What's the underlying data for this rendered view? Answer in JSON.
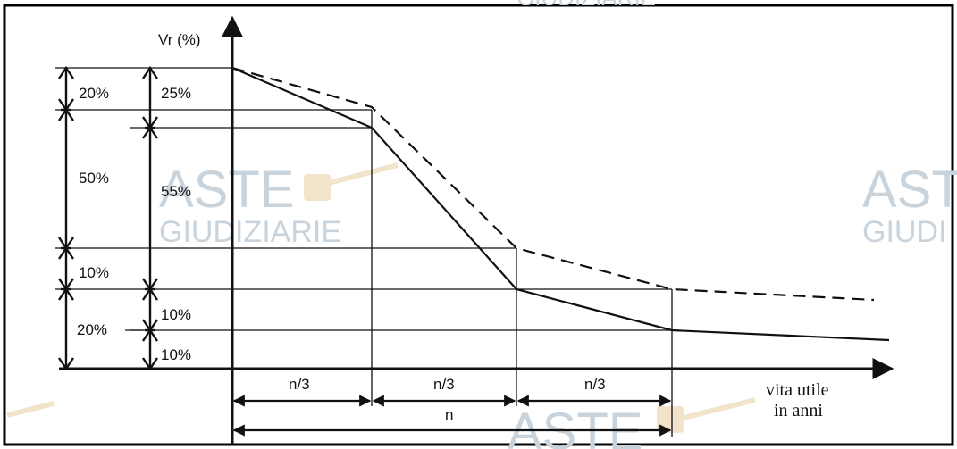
{
  "diagram": {
    "y_axis_label": "Vr (%)",
    "x_axis_label_line1": "vita utile",
    "x_axis_label_line2": "in anni",
    "left_scale": {
      "labels": [
        "20%",
        "50%",
        "10%",
        "20%"
      ]
    },
    "right_scale": {
      "labels": [
        "25%",
        "55%",
        "10%",
        "10%"
      ]
    },
    "intervals": {
      "segment_label": "n/3",
      "total_label": "n"
    },
    "series": [
      {
        "style": "solid"
      },
      {
        "style": "dashed"
      }
    ],
    "watermark": {
      "brand": "ASTE",
      "subtitle": "GIUDIZIARIE",
      "subtitle_partial_top": "GIUDIZIARIE",
      "subtitle_partial_right": "GIUDI"
    },
    "colors": {
      "line": "#111111",
      "watermark": "#c9d3dc",
      "frame": "#000000"
    }
  }
}
